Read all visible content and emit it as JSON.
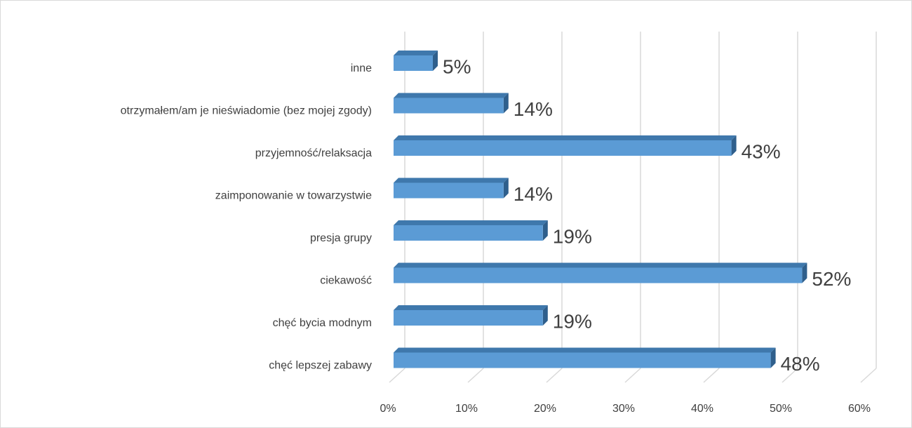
{
  "chart_data": {
    "type": "bar3d_horizontal",
    "categories": [
      "inne",
      "otrzymałem/am je nieświadomie (bez mojej zgody)",
      "przyjemność/relaksacja",
      "zaimponowanie w towarzystwie",
      "presja grupy",
      "ciekawość",
      "chęć bycia modnym",
      "chęć lepszej zabawy"
    ],
    "values": [
      5,
      14,
      43,
      14,
      19,
      52,
      19,
      48
    ],
    "value_labels": [
      "5%",
      "14%",
      "43%",
      "14%",
      "19%",
      "52%",
      "19%",
      "48%"
    ],
    "color": "#5b9bd5",
    "xlim": [
      0,
      60
    ],
    "xticks": [
      {
        "value": 0,
        "label": "0%"
      },
      {
        "value": 10,
        "label": "10%"
      },
      {
        "value": 20,
        "label": "20%"
      },
      {
        "value": 30,
        "label": "30%"
      },
      {
        "value": 40,
        "label": "40%"
      },
      {
        "value": 50,
        "label": "50%"
      },
      {
        "value": 60,
        "label": "60%"
      }
    ],
    "grid": true
  }
}
